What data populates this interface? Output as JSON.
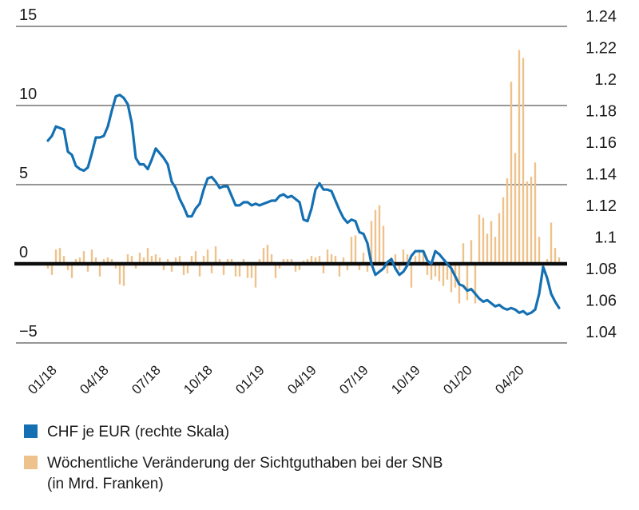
{
  "colors": {
    "line": "#1470b2",
    "bar": "#edc28c",
    "text": "#1a1a1a",
    "grid": "#2e2e2e",
    "zero_line": "#0d0d0d",
    "background": "#ffffff"
  },
  "legend": {
    "items": [
      {
        "label": "CHF je EUR (rechte Skala)",
        "color": "#1470b2"
      },
      {
        "line1": "Wöchentliche Veränderung der Sichtguthaben bei der SNB",
        "line2": "(in Mrd. Franken)",
        "color": "#edc28c"
      }
    ]
  },
  "chart_data": {
    "type": "combo",
    "x_axis": {
      "tick_labels": [
        "01/18",
        "04/18",
        "07/18",
        "10/18",
        "01/19",
        "04/19",
        "07/19",
        "10/19",
        "01/20",
        "04/20"
      ],
      "tick_interval_weeks": 13,
      "n_points": 129,
      "unit": "week"
    },
    "left_axis": {
      "description": "Wöchentliche Veränderung in Mrd. Franken",
      "ticks": [
        {
          "label": "15",
          "value": 15
        },
        {
          "label": "10",
          "value": 10
        },
        {
          "label": "5",
          "value": 5
        },
        {
          "label": "0",
          "value": 0
        },
        {
          "label": "−5",
          "value": -5
        }
      ],
      "zero_line_bold": true
    },
    "right_axis": {
      "description": "CHF je EUR",
      "ticks": [
        {
          "label": "1.24",
          "value": 1.24
        },
        {
          "label": "1.22",
          "value": 1.22
        },
        {
          "label": "1.2",
          "value": 1.2
        },
        {
          "label": "1.18",
          "value": 1.18
        },
        {
          "label": "1.16",
          "value": 1.16
        },
        {
          "label": "1.14",
          "value": 1.14
        },
        {
          "label": "1.12",
          "value": 1.12
        },
        {
          "label": "1.1",
          "value": 1.1
        },
        {
          "label": "1.08",
          "value": 1.08
        },
        {
          "label": "1.06",
          "value": 1.06
        },
        {
          "label": "1.04",
          "value": 1.04
        }
      ],
      "value_at_zero_line": 1.083
    },
    "series": [
      {
        "name": "CHF je EUR (rechte Skala)",
        "type": "line",
        "axis": "right",
        "color": "#1470b2",
        "values": [
          1.161,
          1.164,
          1.17,
          1.169,
          1.168,
          1.154,
          1.152,
          1.145,
          1.143,
          1.142,
          1.144,
          1.153,
          1.163,
          1.163,
          1.164,
          1.17,
          1.18,
          1.189,
          1.19,
          1.188,
          1.184,
          1.172,
          1.15,
          1.146,
          1.146,
          1.143,
          1.149,
          1.156,
          1.153,
          1.15,
          1.146,
          1.135,
          1.131,
          1.124,
          1.119,
          1.113,
          1.113,
          1.118,
          1.121,
          1.13,
          1.137,
          1.138,
          1.135,
          1.131,
          1.132,
          1.132,
          1.126,
          1.12,
          1.12,
          1.122,
          1.122,
          1.12,
          1.121,
          1.12,
          1.121,
          1.122,
          1.123,
          1.123,
          1.126,
          1.127,
          1.125,
          1.126,
          1.124,
          1.122,
          1.111,
          1.11,
          1.118,
          1.13,
          1.134,
          1.13,
          1.13,
          1.129,
          1.123,
          1.117,
          1.112,
          1.109,
          1.111,
          1.11,
          1.103,
          1.102,
          1.096,
          1.083,
          1.076,
          1.078,
          1.08,
          1.084,
          1.086,
          1.08,
          1.076,
          1.078,
          1.082,
          1.088,
          1.091,
          1.091,
          1.091,
          1.085,
          1.083,
          1.091,
          1.089,
          1.086,
          1.083,
          1.08,
          1.075,
          1.07,
          1.069,
          1.066,
          1.067,
          1.064,
          1.061,
          1.059,
          1.06,
          1.058,
          1.056,
          1.057,
          1.055,
          1.054,
          1.055,
          1.054,
          1.052,
          1.053,
          1.051,
          1.052,
          1.054,
          1.064,
          1.081,
          1.074,
          1.064,
          1.059,
          1.055
        ]
      },
      {
        "name": "Wöchentliche Veränderung der Sichtguthaben bei der SNB (in Mrd. Franken)",
        "type": "bar",
        "axis": "left",
        "color": "#edc28c",
        "values": [
          -0.3,
          -0.7,
          0.9,
          1.0,
          0.5,
          -0.4,
          -0.9,
          0.3,
          0.4,
          0.8,
          -0.5,
          0.9,
          0.4,
          -0.8,
          0.3,
          0.4,
          0.3,
          -0.3,
          -1.3,
          -1.4,
          0.6,
          0.5,
          -0.3,
          0.7,
          0.4,
          1.0,
          0.5,
          0.6,
          0.4,
          -0.4,
          0.3,
          -0.5,
          0.4,
          0.5,
          -0.7,
          -0.6,
          0.5,
          0.8,
          -0.8,
          0.5,
          0.9,
          -0.6,
          1.1,
          0.3,
          -0.7,
          0.3,
          0.3,
          -0.8,
          -0.8,
          0.3,
          -0.9,
          -0.9,
          -1.5,
          0.3,
          1.0,
          1.2,
          0.6,
          -0.9,
          -0.3,
          0.3,
          0.3,
          0.3,
          -0.5,
          -0.4,
          0.2,
          0.3,
          0.5,
          0.4,
          0.5,
          -0.6,
          0.9,
          0.6,
          0.5,
          -0.8,
          0.4,
          -0.4,
          1.7,
          1.8,
          -0.4,
          0.7,
          -0.5,
          2.7,
          3.4,
          3.7,
          2.4,
          -0.6,
          0.4,
          0.6,
          -0.4,
          0.9,
          0.6,
          -1.5,
          0.5,
          0.9,
          0.7,
          -0.7,
          -1.0,
          -0.8,
          -1.1,
          -1.4,
          -1.0,
          -1.8,
          -1.5,
          -2.5,
          1.3,
          -2.3,
          1.5,
          -2.5,
          3.1,
          2.9,
          1.9,
          2.7,
          1.7,
          3.2,
          4.2,
          5.4,
          11.5,
          7.0,
          13.5,
          13.0,
          5.2,
          5.5,
          6.4,
          1.7,
          -0.5,
          0.3,
          2.6,
          1.0,
          0.4
        ]
      }
    ],
    "grid": true,
    "legend_position": "bottom-left"
  }
}
